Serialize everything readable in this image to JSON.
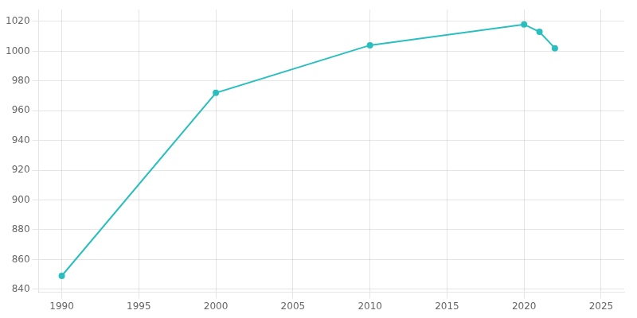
{
  "chart_data": {
    "type": "line",
    "x": [
      1990,
      2000,
      2010,
      2020,
      2021,
      2022
    ],
    "values": [
      849,
      972,
      1004,
      1018,
      1013,
      1002
    ],
    "color": "#2abfbf",
    "marker": "circle",
    "xlim": [
      1988.5,
      2026.5
    ],
    "ylim": [
      838,
      1028
    ],
    "xticks": [
      1990,
      1995,
      2000,
      2005,
      2010,
      2015,
      2020,
      2025
    ],
    "yticks": [
      840,
      860,
      880,
      900,
      920,
      940,
      960,
      980,
      1000,
      1020
    ],
    "grid": true
  }
}
